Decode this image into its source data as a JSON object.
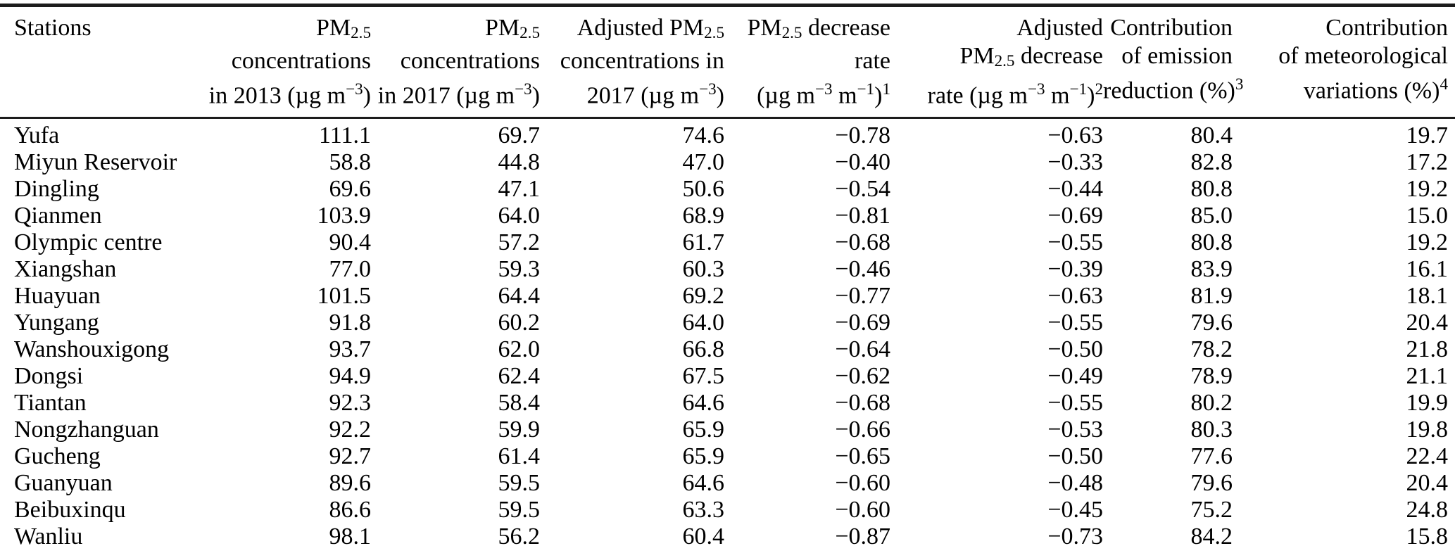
{
  "table": {
    "columns": [
      {
        "id": "stations",
        "align": "left",
        "header_lines": [
          "Stations"
        ]
      },
      {
        "id": "pm25-concentrations-2013",
        "align": "right",
        "header_lines": [
          "PM_{2.5}",
          "concentrations",
          "in 2013 (µg m^{−3})"
        ]
      },
      {
        "id": "pm25-concentrations-2017",
        "align": "right",
        "header_lines": [
          "PM_{2.5}",
          "concentrations",
          "in 2017 (µg m^{−3})"
        ]
      },
      {
        "id": "adjusted-pm25-concentrations-2017",
        "align": "right",
        "header_lines": [
          "Adjusted PM_{2.5}",
          "concentrations in",
          "2017 (µg m^{−3})"
        ]
      },
      {
        "id": "pm25-decrease-rate",
        "align": "right",
        "header_lines": [
          "PM_{2.5} decrease",
          "rate",
          "(µg m^{−3} m^{−1})^{1}"
        ]
      },
      {
        "id": "adjusted-pm25-decrease-rate",
        "align": "right",
        "header_lines": [
          "Adjusted",
          "PM_{2.5} decrease",
          "rate (µg m^{−3} m^{−1})^{2}"
        ]
      },
      {
        "id": "contribution-emission-reduction",
        "align": "right",
        "header_lines": [
          "Contribution",
          "of emission",
          "reduction (%)^{3}"
        ]
      },
      {
        "id": "contribution-meteorological-variations",
        "align": "right",
        "header_lines": [
          "Contribution",
          "of meteorological",
          "variations (%)^{4}"
        ]
      }
    ],
    "rows": [
      {
        "station": "Yufa",
        "values": [
          "111.1",
          "69.7",
          "74.6",
          "−0.78",
          "−0.63",
          "80.4",
          "19.7"
        ]
      },
      {
        "station": "Miyun Reservoir",
        "values": [
          "58.8",
          "44.8",
          "47.0",
          "−0.40",
          "−0.33",
          "82.8",
          "17.2"
        ]
      },
      {
        "station": "Dingling",
        "values": [
          "69.6",
          "47.1",
          "50.6",
          "−0.54",
          "−0.44",
          "80.8",
          "19.2"
        ]
      },
      {
        "station": "Qianmen",
        "values": [
          "103.9",
          "64.0",
          "68.9",
          "−0.81",
          "−0.69",
          "85.0",
          "15.0"
        ]
      },
      {
        "station": "Olympic centre",
        "values": [
          "90.4",
          "57.2",
          "61.7",
          "−0.68",
          "−0.55",
          "80.8",
          "19.2"
        ]
      },
      {
        "station": "Xiangshan",
        "values": [
          "77.0",
          "59.3",
          "60.3",
          "−0.46",
          "−0.39",
          "83.9",
          "16.1"
        ]
      },
      {
        "station": "Huayuan",
        "values": [
          "101.5",
          "64.4",
          "69.2",
          "−0.77",
          "−0.63",
          "81.9",
          "18.1"
        ]
      },
      {
        "station": "Yungang",
        "values": [
          "91.8",
          "60.2",
          "64.0",
          "−0.69",
          "−0.55",
          "79.6",
          "20.4"
        ]
      },
      {
        "station": "Wanshouxigong",
        "values": [
          "93.7",
          "62.0",
          "66.8",
          "−0.64",
          "−0.50",
          "78.2",
          "21.8"
        ]
      },
      {
        "station": "Dongsi",
        "values": [
          "94.9",
          "62.4",
          "67.5",
          "−0.62",
          "−0.49",
          "78.9",
          "21.1"
        ]
      },
      {
        "station": "Tiantan",
        "values": [
          "92.3",
          "58.4",
          "64.6",
          "−0.68",
          "−0.55",
          "80.2",
          "19.9"
        ]
      },
      {
        "station": "Nongzhanguan",
        "values": [
          "92.2",
          "59.9",
          "65.9",
          "−0.66",
          "−0.53",
          "80.3",
          "19.8"
        ]
      },
      {
        "station": "Gucheng",
        "values": [
          "92.7",
          "61.4",
          "65.9",
          "−0.65",
          "−0.50",
          "77.6",
          "22.4"
        ]
      },
      {
        "station": "Guanyuan",
        "values": [
          "89.6",
          "59.5",
          "64.6",
          "−0.60",
          "−0.48",
          "79.6",
          "20.4"
        ]
      },
      {
        "station": "Beibuxinqu",
        "values": [
          "86.6",
          "59.5",
          "63.3",
          "−0.60",
          "−0.45",
          "75.2",
          "24.8"
        ]
      },
      {
        "station": "Wanliu",
        "values": [
          "98.1",
          "56.2",
          "60.4",
          "−0.87",
          "−0.73",
          "84.2",
          "15.8"
        ]
      }
    ]
  }
}
